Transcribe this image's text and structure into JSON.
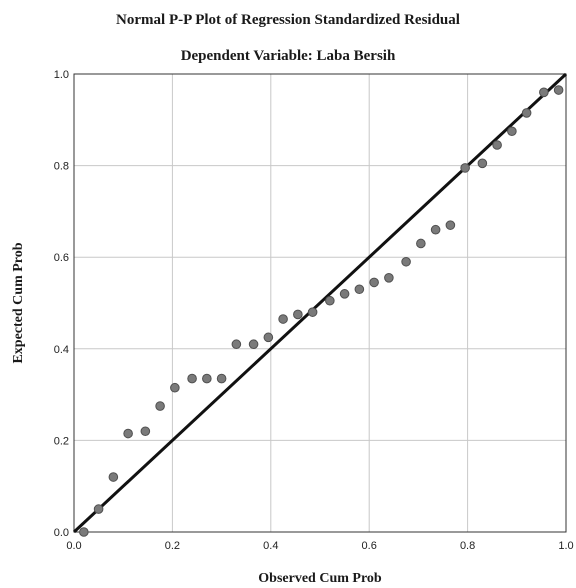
{
  "chart_data": {
    "type": "scatter",
    "title": "Normal P-P Plot of Regression Standardized Residual",
    "subtitle": "Dependent Variable: Laba Bersih",
    "xlabel": "Observed Cum Prob",
    "ylabel": "Expected Cum Prob",
    "xlim": [
      0,
      1
    ],
    "ylim": [
      0,
      1
    ],
    "xticks": [
      "0.0",
      "0.2",
      "0.4",
      "0.6",
      "0.8",
      "1.0"
    ],
    "yticks": [
      "0.0",
      "0.2",
      "0.4",
      "0.6",
      "0.8",
      "1.0"
    ],
    "grid": true,
    "reference_line": [
      [
        0,
        0
      ],
      [
        1,
        1
      ]
    ],
    "points": [
      [
        0.02,
        0.0
      ],
      [
        0.05,
        0.05
      ],
      [
        0.08,
        0.12
      ],
      [
        0.11,
        0.215
      ],
      [
        0.145,
        0.22
      ],
      [
        0.175,
        0.275
      ],
      [
        0.205,
        0.315
      ],
      [
        0.24,
        0.335
      ],
      [
        0.27,
        0.335
      ],
      [
        0.3,
        0.335
      ],
      [
        0.33,
        0.41
      ],
      [
        0.365,
        0.41
      ],
      [
        0.395,
        0.425
      ],
      [
        0.425,
        0.465
      ],
      [
        0.455,
        0.475
      ],
      [
        0.485,
        0.48
      ],
      [
        0.52,
        0.505
      ],
      [
        0.55,
        0.52
      ],
      [
        0.58,
        0.53
      ],
      [
        0.61,
        0.545
      ],
      [
        0.64,
        0.555
      ],
      [
        0.675,
        0.59
      ],
      [
        0.705,
        0.63
      ],
      [
        0.735,
        0.66
      ],
      [
        0.765,
        0.67
      ],
      [
        0.795,
        0.795
      ],
      [
        0.83,
        0.805
      ],
      [
        0.86,
        0.845
      ],
      [
        0.89,
        0.875
      ],
      [
        0.92,
        0.915
      ],
      [
        0.955,
        0.96
      ],
      [
        0.985,
        0.965
      ]
    ],
    "colors": {
      "points": "#7a7a7a",
      "points_stroke": "#505050",
      "line": "#111111",
      "grid": "#c8c8c8"
    }
  }
}
